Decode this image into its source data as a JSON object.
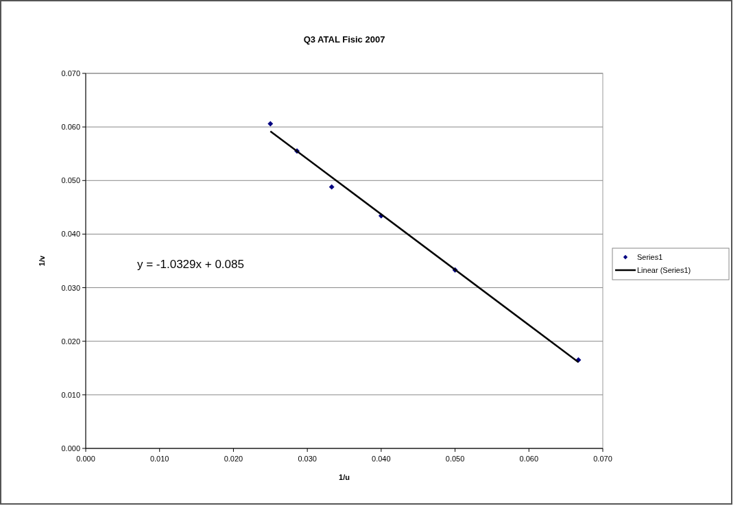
{
  "chart_data": {
    "type": "scatter",
    "title": "Q3 ATAL Fisic 2007",
    "xlabel": "1/u",
    "ylabel": "1/v",
    "xlim": [
      0,
      0.07
    ],
    "xticks": [
      {
        "value": 0,
        "label": "0.000"
      },
      {
        "value": 0.01,
        "label": "0.010"
      },
      {
        "value": 0.02,
        "label": "0.020"
      },
      {
        "value": 0.03,
        "label": "0.030"
      },
      {
        "value": 0.04,
        "label": "0.040"
      },
      {
        "value": 0.05,
        "label": "0.050"
      },
      {
        "value": 0.06,
        "label": "0.060"
      },
      {
        "value": 0.07,
        "label": "0.070"
      }
    ],
    "ylim": [
      0,
      0.07
    ],
    "yticks": [
      {
        "value": 0,
        "label": "0.000"
      },
      {
        "value": 0.01,
        "label": "0.010"
      },
      {
        "value": 0.02,
        "label": "0.020"
      },
      {
        "value": 0.03,
        "label": "0.030"
      },
      {
        "value": 0.04,
        "label": "0.040"
      },
      {
        "value": 0.05,
        "label": "0.050"
      },
      {
        "value": 0.06,
        "label": "0.060"
      },
      {
        "value": 0.07,
        "label": "0.070"
      }
    ],
    "grid": "y",
    "legend": "right",
    "series": [
      {
        "name": "Series1",
        "type": "scatter",
        "marker": "diamond",
        "color": "#000080",
        "x": [
          0.025,
          0.0286,
          0.0333,
          0.04,
          0.05,
          0.0667
        ],
        "values": [
          0.0606,
          0.0555,
          0.0488,
          0.0434,
          0.0333,
          0.0165
        ]
      },
      {
        "name": "Linear (Series1)",
        "type": "line",
        "marker": "none",
        "color": "#000000",
        "line_style": "solid",
        "x": [
          0.025,
          0.0667
        ],
        "values": [
          0.0592,
          0.0161
        ]
      }
    ],
    "annotations": [
      "y = -1.0329x + 0.085"
    ]
  }
}
